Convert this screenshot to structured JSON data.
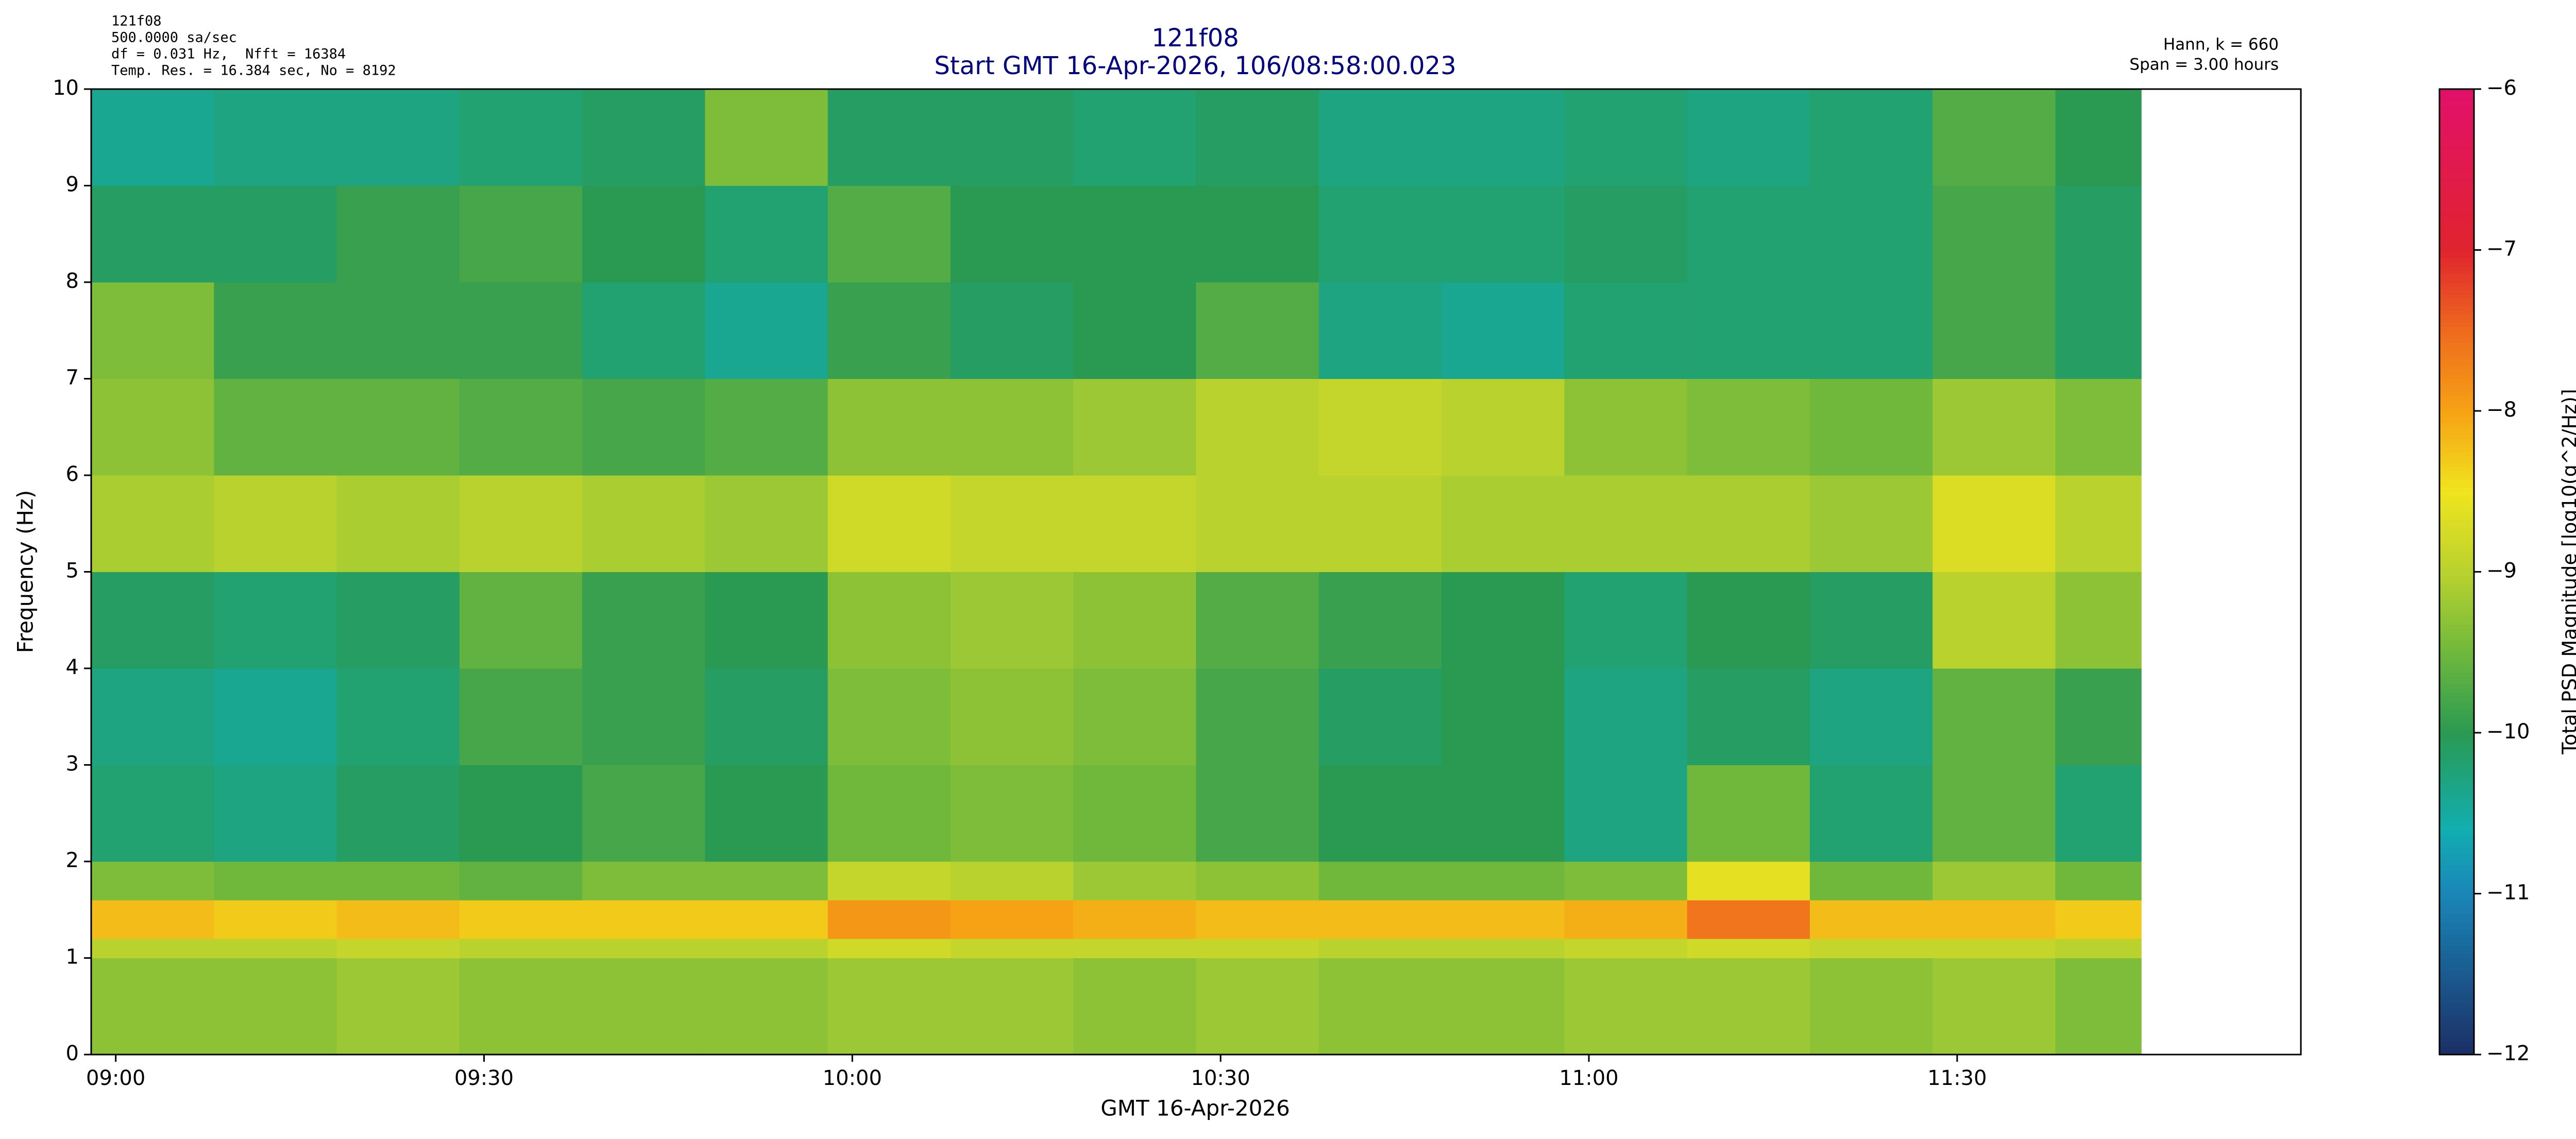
{
  "header": {
    "info_left": [
      "121f08",
      "500.0000 sa/sec",
      "df = 0.031 Hz,  Nfft = 16384",
      "Temp. Res. = 16.384 sec, No = 8192"
    ],
    "info_right": [
      "Hann, k = 660",
      "Span = 3.00 hours"
    ]
  },
  "chart_data": {
    "type": "heatmap",
    "title": "121f08",
    "subtitle": "Start GMT 16-Apr-2026, 106/08:58:00.023",
    "xlabel": "GMT 16-Apr-2026",
    "ylabel": "Frequency (Hz)",
    "colorbar_label": "Total PSD Magnitude [log10(g^2/Hz)]",
    "xlim": [
      0,
      180
    ],
    "ylim": [
      0,
      10
    ],
    "xticks": [
      {
        "value": 2,
        "label": "09:00"
      },
      {
        "value": 32,
        "label": "09:30"
      },
      {
        "value": 62,
        "label": "10:00"
      },
      {
        "value": 92,
        "label": "10:30"
      },
      {
        "value": 122,
        "label": "11:00"
      },
      {
        "value": 152,
        "label": "11:30"
      }
    ],
    "yticks": [
      0,
      1,
      2,
      3,
      4,
      5,
      6,
      7,
      8,
      9,
      10
    ],
    "clim": [
      -12,
      -6
    ],
    "cticks": [
      {
        "value": -12,
        "label": "−12"
      },
      {
        "value": -11,
        "label": "−11"
      },
      {
        "value": -10,
        "label": "−10"
      },
      {
        "value": -9,
        "label": "−9"
      },
      {
        "value": -8,
        "label": "−8"
      },
      {
        "value": -7,
        "label": "−7"
      },
      {
        "value": -6,
        "label": "−6"
      }
    ],
    "colormap": [
      {
        "value": -12,
        "color": "#1b2f66"
      },
      {
        "value": -11,
        "color": "#1a86b8"
      },
      {
        "value": -10.6,
        "color": "#12aeb0"
      },
      {
        "value": -10,
        "color": "#2a9a52"
      },
      {
        "value": -9.5,
        "color": "#6fb83c"
      },
      {
        "value": -9,
        "color": "#b9d22e"
      },
      {
        "value": -8.5,
        "color": "#f0e41e"
      },
      {
        "value": -8,
        "color": "#f6a214"
      },
      {
        "value": -7.5,
        "color": "#ee6a1e"
      },
      {
        "value": -7,
        "color": "#e0242e"
      },
      {
        "value": -6,
        "color": "#e2106a"
      }
    ],
    "xbins": [
      0,
      10,
      20,
      30,
      40,
      50,
      60,
      70,
      80,
      90,
      100,
      110,
      120,
      130,
      140,
      150,
      160,
      167
    ],
    "ybins": [
      0,
      1,
      1.2,
      1.6,
      2,
      3,
      4,
      5,
      6,
      7,
      8,
      9,
      10
    ],
    "values": [
      [
        -9.3,
        -9.3,
        -9.2,
        -9.3,
        -9.3,
        -9.3,
        -9.2,
        -9.2,
        -9.3,
        -9.2,
        -9.3,
        -9.3,
        -9.2,
        -9.2,
        -9.3,
        -9.2,
        -9.4
      ],
      [
        -9.0,
        -9.0,
        -8.9,
        -9.0,
        -9.0,
        -9.0,
        -8.8,
        -8.9,
        -8.9,
        -8.9,
        -9.0,
        -9.0,
        -8.9,
        -8.8,
        -8.9,
        -8.9,
        -9.0
      ],
      [
        -8.2,
        -8.3,
        -8.2,
        -8.3,
        -8.3,
        -8.3,
        -7.9,
        -8.0,
        -8.1,
        -8.2,
        -8.2,
        -8.2,
        -8.1,
        -7.6,
        -8.2,
        -8.2,
        -8.3
      ],
      [
        -9.4,
        -9.5,
        -9.5,
        -9.6,
        -9.4,
        -9.4,
        -8.9,
        -9.0,
        -9.2,
        -9.3,
        -9.5,
        -9.5,
        -9.4,
        -8.6,
        -9.5,
        -9.2,
        -9.5
      ],
      [
        -10.2,
        -10.3,
        -10.1,
        -10.0,
        -9.8,
        -10.0,
        -9.5,
        -9.4,
        -9.5,
        -9.8,
        -10.0,
        -10.0,
        -10.3,
        -9.5,
        -10.2,
        -9.6,
        -10.2
      ],
      [
        -10.3,
        -10.4,
        -10.2,
        -9.8,
        -9.9,
        -10.1,
        -9.4,
        -9.3,
        -9.4,
        -9.8,
        -10.1,
        -10.0,
        -10.3,
        -10.1,
        -10.3,
        -9.6,
        -9.9
      ],
      [
        -10.1,
        -10.2,
        -10.1,
        -9.6,
        -9.9,
        -10.0,
        -9.3,
        -9.2,
        -9.3,
        -9.7,
        -9.9,
        -10.0,
        -10.2,
        -10.0,
        -10.1,
        -9.0,
        -9.3
      ],
      [
        -9.1,
        -9.0,
        -9.1,
        -9.0,
        -9.1,
        -9.2,
        -8.8,
        -8.9,
        -8.9,
        -9.0,
        -9.0,
        -9.1,
        -9.1,
        -9.1,
        -9.2,
        -8.7,
        -9.0
      ],
      [
        -9.3,
        -9.6,
        -9.6,
        -9.7,
        -9.8,
        -9.7,
        -9.3,
        -9.3,
        -9.2,
        -9.0,
        -8.9,
        -9.0,
        -9.3,
        -9.4,
        -9.5,
        -9.2,
        -9.4
      ],
      [
        -9.4,
        -9.9,
        -9.9,
        -9.9,
        -10.2,
        -10.4,
        -9.9,
        -10.1,
        -10.0,
        -9.7,
        -10.3,
        -10.4,
        -10.2,
        -10.2,
        -10.2,
        -9.8,
        -10.1
      ],
      [
        -10.1,
        -10.1,
        -9.9,
        -9.8,
        -10.0,
        -10.2,
        -9.7,
        -10.0,
        -10.0,
        -10.0,
        -10.2,
        -10.2,
        -10.1,
        -10.2,
        -10.2,
        -9.8,
        -10.1
      ],
      [
        -10.4,
        -10.3,
        -10.3,
        -10.2,
        -10.1,
        -9.4,
        -10.1,
        -10.1,
        -10.2,
        -10.1,
        -10.3,
        -10.3,
        -10.2,
        -10.3,
        -10.2,
        -9.7,
        -10.0
      ]
    ]
  }
}
